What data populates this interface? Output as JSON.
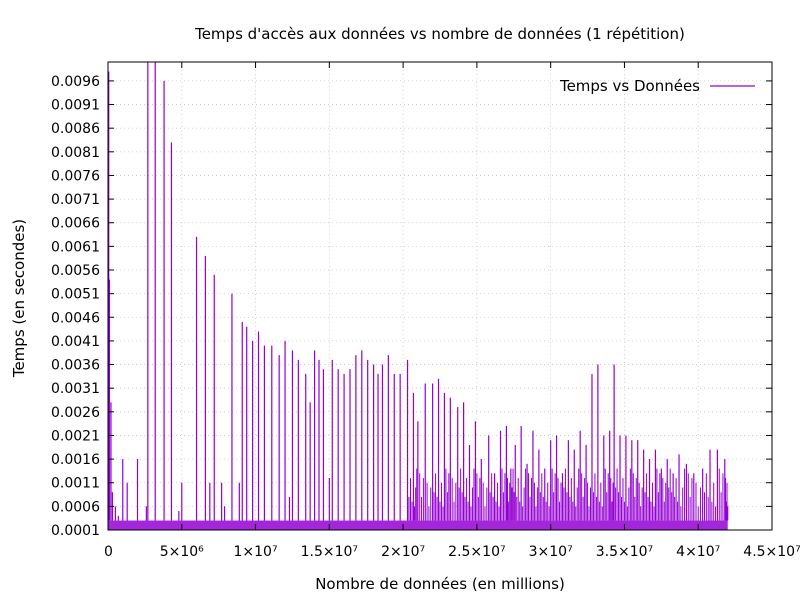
{
  "chart_data": {
    "type": "line",
    "title": "Temps d'accès aux données vs nombre de données (1 répétition)",
    "xlabel": "Nombre de données (en millions)",
    "ylabel": "Temps (en secondes)",
    "xlim": [
      0,
      45000000
    ],
    "ylim": [
      0.0001,
      0.01
    ],
    "x_ticks": [
      {
        "value": 0,
        "label": "0"
      },
      {
        "value": 5000000,
        "label": "5×10⁶"
      },
      {
        "value": 10000000,
        "label": "1×10⁷"
      },
      {
        "value": 15000000,
        "label": "1.5×10⁷"
      },
      {
        "value": 20000000,
        "label": "2×10⁷"
      },
      {
        "value": 25000000,
        "label": "2.5×10⁷"
      },
      {
        "value": 30000000,
        "label": "3×10⁷"
      },
      {
        "value": 35000000,
        "label": "3.5×10⁷"
      },
      {
        "value": 40000000,
        "label": "4×10⁷"
      },
      {
        "value": 45000000,
        "label": "4.5×10⁷"
      }
    ],
    "y_ticks": [
      {
        "value": 0.0001,
        "label": "0.0001"
      },
      {
        "value": 0.0006,
        "label": "0.0006"
      },
      {
        "value": 0.0011,
        "label": "0.0011"
      },
      {
        "value": 0.0016,
        "label": "0.0016"
      },
      {
        "value": 0.0021,
        "label": "0.0021"
      },
      {
        "value": 0.0026,
        "label": "0.0026"
      },
      {
        "value": 0.0031,
        "label": "0.0031"
      },
      {
        "value": 0.0036,
        "label": "0.0036"
      },
      {
        "value": 0.0041,
        "label": "0.0041"
      },
      {
        "value": 0.0046,
        "label": "0.0046"
      },
      {
        "value": 0.0051,
        "label": "0.0051"
      },
      {
        "value": 0.0056,
        "label": "0.0056"
      },
      {
        "value": 0.0061,
        "label": "0.0061"
      },
      {
        "value": 0.0066,
        "label": "0.0066"
      },
      {
        "value": 0.0071,
        "label": "0.0071"
      },
      {
        "value": 0.0076,
        "label": "0.0076"
      },
      {
        "value": 0.0081,
        "label": "0.0081"
      },
      {
        "value": 0.0086,
        "label": "0.0086"
      },
      {
        "value": 0.0091,
        "label": "0.0091"
      },
      {
        "value": 0.0096,
        "label": "0.0096"
      }
    ],
    "grid": true,
    "legend_position": "top-right",
    "series": [
      {
        "name": "Temps vs Données",
        "color": "#9400d3",
        "baseline": 0.0003,
        "points": [
          [
            0,
            0.0003
          ],
          [
            50000,
            0.0098
          ],
          [
            100000,
            0.0054
          ],
          [
            200000,
            0.0028
          ],
          [
            300000,
            0.0009
          ],
          [
            500000,
            0.0006
          ],
          [
            700000,
            0.0004
          ],
          [
            1000000,
            0.0016
          ],
          [
            1300000,
            0.0011
          ],
          [
            2000000,
            0.0016
          ],
          [
            2600000,
            0.0006
          ],
          [
            2700000,
            0.0101
          ],
          [
            3200000,
            0.0101
          ],
          [
            3800000,
            0.0096
          ],
          [
            4300000,
            0.0083
          ],
          [
            4800000,
            0.0005
          ],
          [
            5000000,
            0.0011
          ],
          [
            6000000,
            0.0063
          ],
          [
            6600000,
            0.0059
          ],
          [
            6900000,
            0.0011
          ],
          [
            7200000,
            0.0055
          ],
          [
            7700000,
            0.0011
          ],
          [
            7900000,
            0.0006
          ],
          [
            8400000,
            0.0051
          ],
          [
            8900000,
            0.0011
          ],
          [
            9100000,
            0.0045
          ],
          [
            9400000,
            0.0044
          ],
          [
            9800000,
            0.0041
          ],
          [
            10200000,
            0.0043
          ],
          [
            10600000,
            0.004
          ],
          [
            11100000,
            0.004
          ],
          [
            11600000,
            0.0038
          ],
          [
            12000000,
            0.0041
          ],
          [
            12300000,
            0.0008
          ],
          [
            12500000,
            0.0039
          ],
          [
            12900000,
            0.0037
          ],
          [
            13400000,
            0.0034
          ],
          [
            13700000,
            0.0028
          ],
          [
            14000000,
            0.0039
          ],
          [
            14300000,
            0.0037
          ],
          [
            14600000,
            0.0035
          ],
          [
            15000000,
            0.0012
          ],
          [
            15200000,
            0.0037
          ],
          [
            15600000,
            0.0035
          ],
          [
            16000000,
            0.0034
          ],
          [
            16400000,
            0.0035
          ],
          [
            16800000,
            0.0038
          ],
          [
            17200000,
            0.0039
          ],
          [
            17600000,
            0.0037
          ],
          [
            18000000,
            0.0036
          ],
          [
            18300000,
            0.0034
          ],
          [
            18600000,
            0.0036
          ],
          [
            19000000,
            0.0038
          ],
          [
            19400000,
            0.0034
          ],
          [
            19800000,
            0.0034
          ],
          [
            20300000,
            0.0037
          ],
          [
            20700000,
            0.003
          ],
          [
            21000000,
            0.0024
          ],
          [
            21500000,
            0.0032
          ],
          [
            22000000,
            0.0032
          ],
          [
            22400000,
            0.0033
          ],
          [
            22800000,
            0.003
          ],
          [
            23200000,
            0.0029
          ],
          [
            23700000,
            0.0027
          ],
          [
            24100000,
            0.0028
          ],
          [
            24500000,
            0.0019
          ],
          [
            24900000,
            0.0024
          ],
          [
            25300000,
            0.0016
          ],
          [
            25800000,
            0.0021
          ],
          [
            26200000,
            0.0013
          ],
          [
            26600000,
            0.0022
          ],
          [
            27000000,
            0.0023
          ],
          [
            27300000,
            0.0014
          ],
          [
            27600000,
            0.0019
          ],
          [
            28000000,
            0.0023
          ],
          [
            28400000,
            0.0015
          ],
          [
            28800000,
            0.0022
          ],
          [
            29200000,
            0.0018
          ],
          [
            29600000,
            0.0014
          ],
          [
            30000000,
            0.002
          ],
          [
            30400000,
            0.0021
          ],
          [
            30800000,
            0.0013
          ],
          [
            31200000,
            0.002
          ],
          [
            31600000,
            0.0018
          ],
          [
            32000000,
            0.0022
          ],
          [
            32400000,
            0.0019
          ],
          [
            32800000,
            0.0034
          ],
          [
            33200000,
            0.0036
          ],
          [
            33600000,
            0.0021
          ],
          [
            34000000,
            0.0022
          ],
          [
            34300000,
            0.0036
          ],
          [
            34700000,
            0.0021
          ],
          [
            35100000,
            0.0021
          ],
          [
            35500000,
            0.002
          ],
          [
            35900000,
            0.002
          ],
          [
            36300000,
            0.0018
          ],
          [
            36700000,
            0.0016
          ],
          [
            37100000,
            0.0018
          ],
          [
            37500000,
            0.0014
          ],
          [
            37900000,
            0.0016
          ],
          [
            38300000,
            0.0013
          ],
          [
            38700000,
            0.0017
          ],
          [
            39200000,
            0.0015
          ],
          [
            39700000,
            0.0013
          ],
          [
            40300000,
            0.0014
          ],
          [
            40800000,
            0.0018
          ],
          [
            41300000,
            0.0018
          ],
          [
            41800000,
            0.0016
          ],
          [
            42000000,
            0.0006
          ]
        ]
      }
    ]
  }
}
